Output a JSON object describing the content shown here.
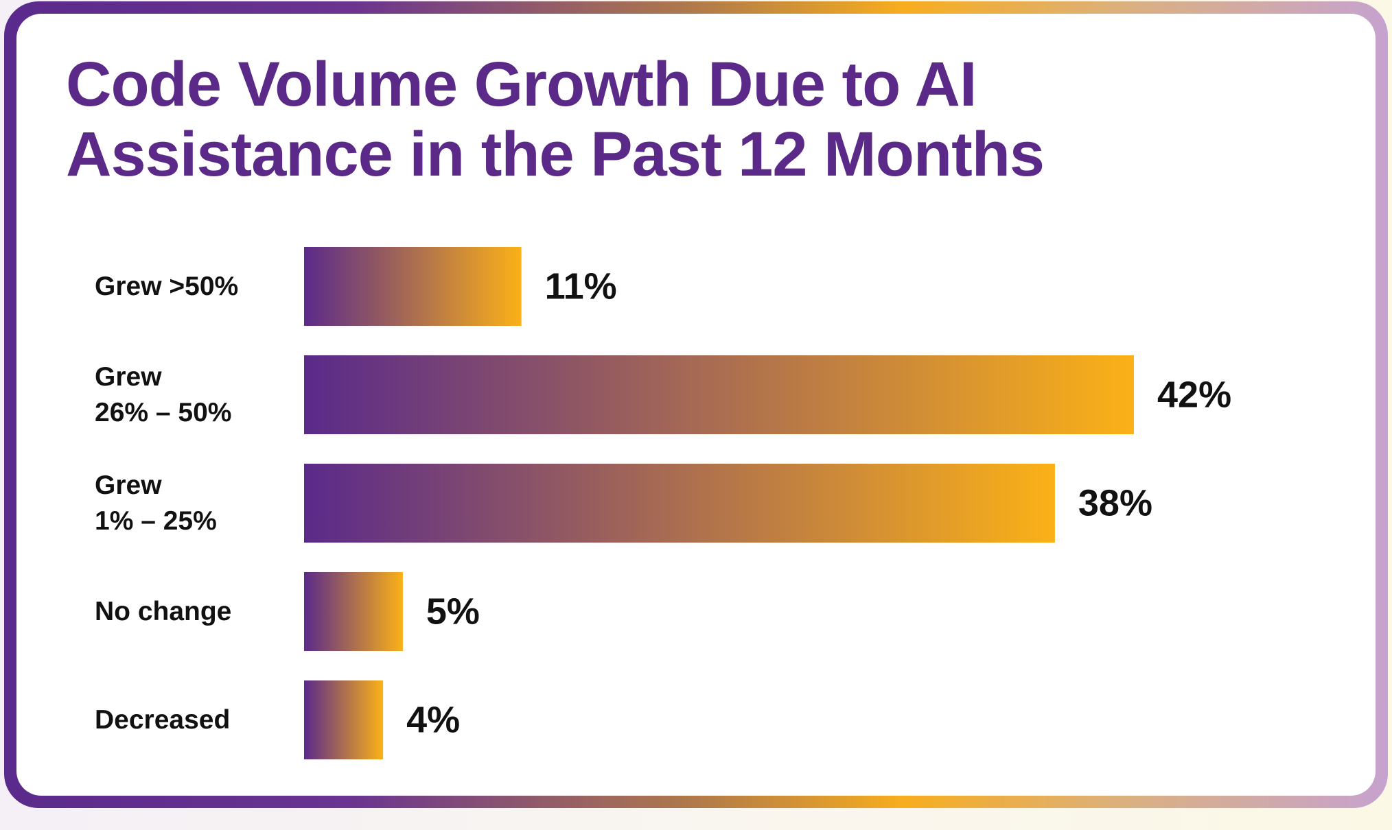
{
  "chart_data": {
    "type": "bar",
    "orientation": "horizontal",
    "title": "Code Volume Growth Due to AI Assistance in the Past 12 Months",
    "categories": [
      [
        "Grew >50%"
      ],
      [
        "Grew",
        "26% – 50%"
      ],
      [
        "Grew",
        "1% – 25%"
      ],
      [
        "No change"
      ],
      [
        "Decreased"
      ]
    ],
    "values": [
      11,
      42,
      38,
      5,
      4
    ],
    "value_labels": [
      "11%",
      "42%",
      "38%",
      "5%",
      "4%"
    ],
    "unit": "%",
    "xlim": [
      0,
      42
    ],
    "grid": false,
    "legend": "none",
    "colors": {
      "title": "#5b2a88",
      "bar_start": "#5a2a8a",
      "bar_end": "#fbb117",
      "text": "#111111"
    }
  }
}
